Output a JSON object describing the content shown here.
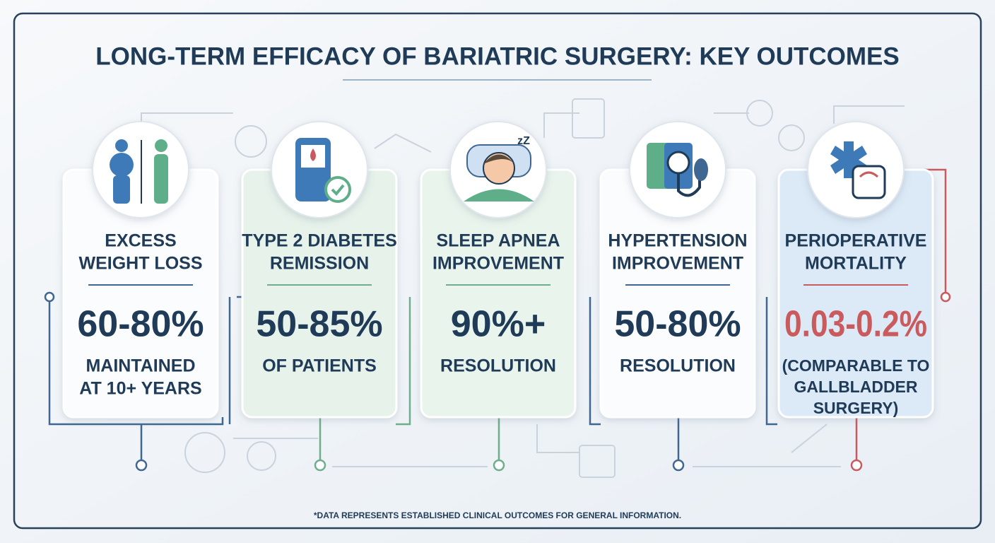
{
  "header": {
    "title": "LONG-TERM EFFICACY OF BARIATRIC SURGERY: KEY OUTCOMES"
  },
  "cards": [
    {
      "label": [
        "EXCESS",
        "WEIGHT LOSS"
      ],
      "value": "60-80%",
      "description": [
        "MAINTAINED",
        "AT 10+ YEARS"
      ]
    },
    {
      "label": [
        "TYPE 2 DIABETES",
        "REMISSION"
      ],
      "value": "50-85%",
      "description": [
        "OF PATIENTS"
      ]
    },
    {
      "label": [
        "SLEEP APNEA",
        "IMPROVEMENT"
      ],
      "value": "90%+",
      "description": [
        "RESOLUTION"
      ]
    },
    {
      "label": [
        "HYPERTENSION",
        "IMPROVEMENT"
      ],
      "value": "50-80%",
      "description": [
        "RESOLUTION"
      ]
    },
    {
      "label": [
        "PERIOPERATIVE",
        "MORTALITY"
      ],
      "value": "0.03-0.2%",
      "description": [
        "(COMPARABLE TO",
        "GALLBLADDER",
        "SURGERY)"
      ]
    }
  ],
  "footnote": "*DATA REPRESENTS ESTABLISHED CLINICAL OUTCOMES FOR GENERAL INFORMATION."
}
